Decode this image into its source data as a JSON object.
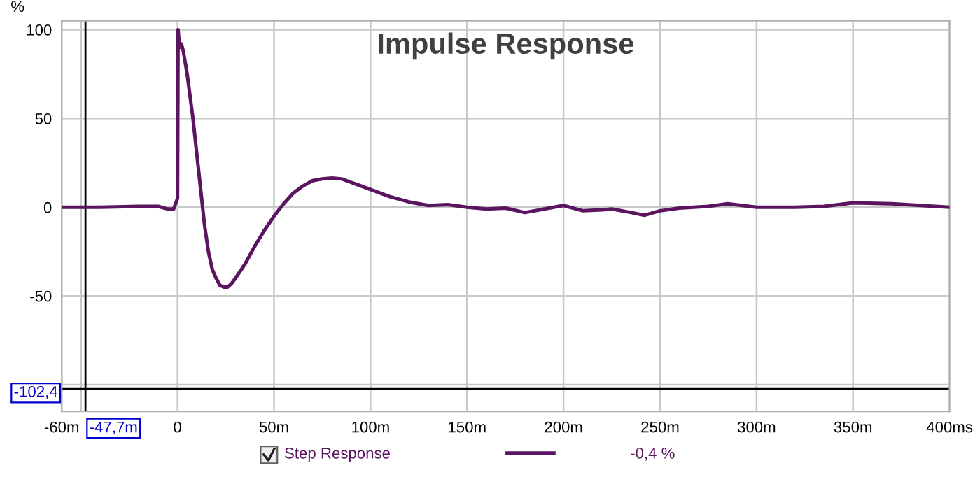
{
  "chart_data": {
    "type": "line",
    "title": "Impulse Response",
    "ylabel": "%",
    "x": [
      -60,
      -40,
      -20,
      -10,
      -5,
      -2,
      -1,
      0,
      0.3,
      1,
      2,
      3,
      5,
      8,
      10,
      12,
      14,
      16,
      18,
      20,
      22,
      24,
      26,
      28,
      30,
      35,
      40,
      45,
      50,
      55,
      60,
      65,
      70,
      75,
      80,
      85,
      90,
      100,
      110,
      120,
      130,
      140,
      150,
      160,
      170,
      180,
      190,
      200,
      210,
      220,
      225,
      235,
      242,
      250,
      260,
      275,
      285,
      300,
      320,
      335,
      350,
      370,
      385,
      400
    ],
    "series": [
      {
        "name": "Step Response",
        "color": "#5b1560",
        "values": [
          0,
          0,
          0.5,
          0.5,
          -1,
          -1,
          2,
          5,
          100,
          90,
          92,
          88,
          75,
          50,
          30,
          10,
          -10,
          -25,
          -35,
          -40,
          -44,
          -45,
          -45,
          -43,
          -40,
          -32,
          -22,
          -13,
          -5,
          2,
          8,
          12,
          15,
          16,
          16.5,
          16,
          14,
          10,
          6,
          3,
          1,
          1.5,
          0,
          -1,
          -0.5,
          -3,
          -1,
          1,
          -2,
          -1.5,
          -1,
          -3,
          -4.5,
          -2,
          -0.5,
          0.5,
          2,
          0,
          0,
          0.5,
          2.5,
          2,
          1,
          0
        ]
      }
    ],
    "xlim": [
      -60,
      400
    ],
    "ylim": [
      -115,
      105
    ],
    "xticks": [
      {
        "value": -60,
        "label": "-60m"
      },
      {
        "value": -50,
        "label": null
      },
      0,
      {
        "value": 50,
        "label": "50m"
      },
      {
        "value": 100,
        "label": "100m"
      },
      {
        "value": 150,
        "label": "150m"
      },
      {
        "value": 200,
        "label": "200m"
      },
      {
        "value": 250,
        "label": "250m"
      },
      {
        "value": 300,
        "label": "300m"
      },
      {
        "value": 350,
        "label": "350m"
      },
      {
        "value": 400,
        "label": "400ms"
      }
    ],
    "yticks": [
      {
        "value": -100,
        "label": null
      },
      -50,
      0,
      50,
      100
    ],
    "ref_lines": [
      {
        "axis": "x",
        "value": -47.7,
        "label": "-47,7m",
        "color": "#000000"
      },
      {
        "axis": "y",
        "value": -102.4,
        "label": "-102,4",
        "color": "#000000"
      }
    ],
    "annotations": [
      "-0,4 %"
    ],
    "grid": true,
    "legend": "bottom",
    "marker": "none",
    "line_style": "solid"
  }
}
